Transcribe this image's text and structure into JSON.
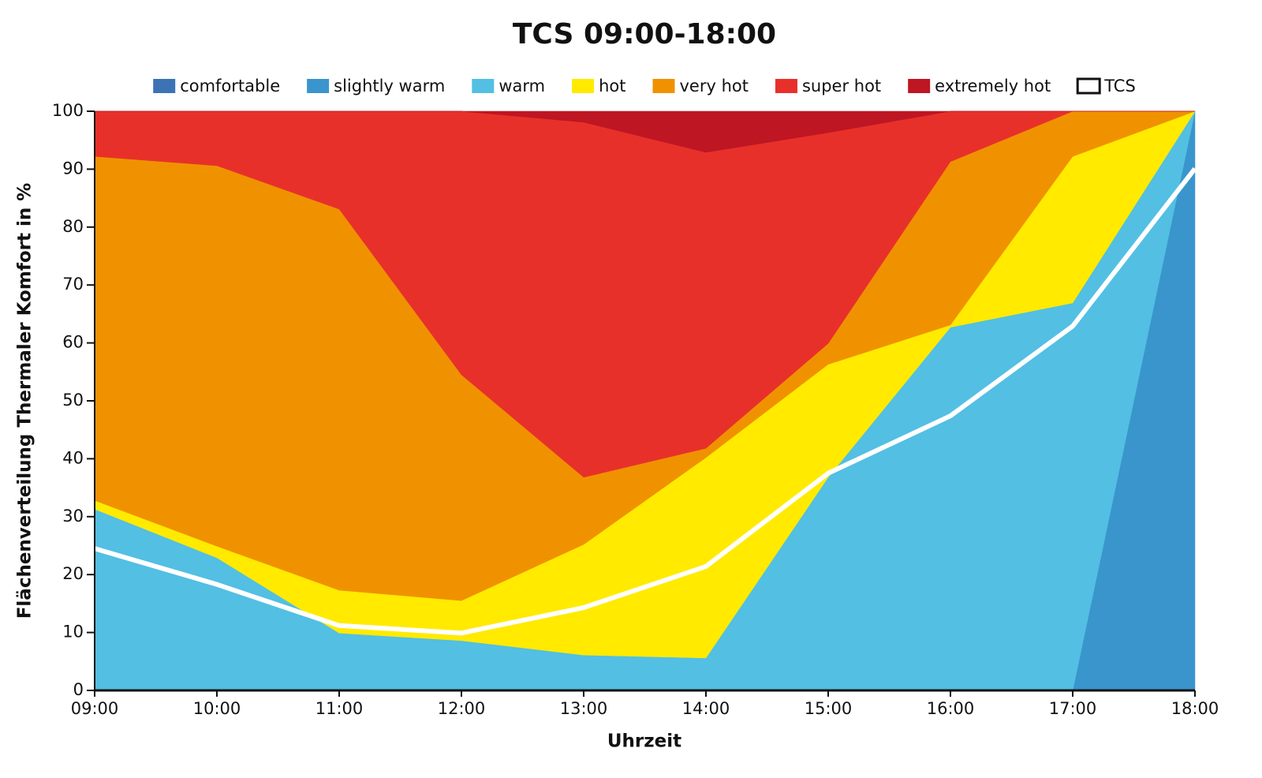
{
  "chart_data": {
    "type": "stacked-area",
    "title": "TCS 09:00-18:00",
    "x_label": "Uhrzeit",
    "y_label": "Flächenverteilung Thermaler Komfort in %",
    "categories": [
      "09:00",
      "10:00",
      "11:00",
      "12:00",
      "13:00",
      "14:00",
      "15:00",
      "16:00",
      "17:00",
      "18:00"
    ],
    "series": [
      {
        "name": "comfortable",
        "color": "#3b73b4",
        "values": [
          0,
          0,
          0,
          0,
          0,
          0,
          0,
          0,
          0,
          0
        ]
      },
      {
        "name": "slightly warm",
        "color": "#3a95cc",
        "values": [
          0,
          0,
          0,
          0,
          0,
          0,
          0,
          0,
          0,
          100
        ]
      },
      {
        "name": "warm",
        "color": "#52bfe3",
        "values": [
          31.3,
          22.9,
          9.9,
          8.6,
          6.1,
          5.6,
          36.8,
          62.7,
          66.9,
          0
        ]
      },
      {
        "name": "hot",
        "color": "#ffea00",
        "values": [
          1.5,
          2.0,
          7.4,
          6.9,
          19.1,
          34.6,
          19.5,
          0.4,
          25.3,
          0
        ]
      },
      {
        "name": "very hot",
        "color": "#f09200",
        "values": [
          59.4,
          65.7,
          65.8,
          39.0,
          11.6,
          1.6,
          3.6,
          28.2,
          7.8,
          0
        ]
      },
      {
        "name": "super hot",
        "color": "#e8302a",
        "values": [
          7.8,
          9.4,
          16.9,
          45.5,
          61.3,
          51.1,
          36.4,
          8.7,
          0,
          0
        ]
      },
      {
        "name": "extremely hot",
        "color": "#be1622",
        "values": [
          0,
          0,
          0,
          0,
          1.9,
          7.1,
          3.7,
          0,
          0,
          0
        ]
      }
    ],
    "line": {
      "name": "TCS",
      "color": "#ffffff",
      "values": [
        24.5,
        18.3,
        11.2,
        9.9,
        14.3,
        21.4,
        37.5,
        47.4,
        62.9,
        90.1
      ]
    },
    "ylim": [
      0,
      100
    ],
    "yticks": [
      0,
      10,
      20,
      30,
      40,
      50,
      60,
      70,
      80,
      90,
      100
    ]
  }
}
